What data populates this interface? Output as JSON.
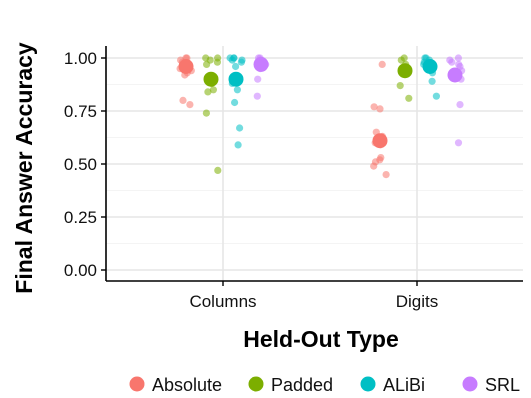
{
  "chart_data": {
    "type": "scatter",
    "title": "",
    "xlabel": "Held-Out Type",
    "ylabel": "Final Answer Accuracy",
    "categories": [
      "Columns",
      "Digits"
    ],
    "ylim": [
      0,
      1
    ],
    "yticks": [
      "0.00",
      "0.25",
      "0.50",
      "0.75",
      "1.00"
    ],
    "grid": true,
    "legend_position": "bottom",
    "series": [
      {
        "name": "Absolute",
        "color": "#F8766D",
        "means": [
          0.96,
          0.61
        ],
        "points": [
          [
            1.0,
            1.0,
            0.99,
            0.98,
            0.97,
            0.96,
            0.95,
            0.94,
            0.93,
            0.92,
            0.8,
            0.78
          ],
          [
            0.97,
            0.77,
            0.76,
            0.65,
            0.63,
            0.6,
            0.53,
            0.52,
            0.51,
            0.49,
            0.45
          ]
        ]
      },
      {
        "name": "Padded",
        "color": "#7CAE00",
        "means": [
          0.9,
          0.94
        ],
        "points": [
          [
            1.0,
            1.0,
            0.99,
            0.98,
            0.97,
            0.91,
            0.88,
            0.85,
            0.84,
            0.74,
            0.47
          ],
          [
            1.0,
            0.99,
            0.97,
            0.95,
            0.87,
            0.81
          ]
        ]
      },
      {
        "name": "ALiBi",
        "color": "#00BFC4",
        "means": [
          0.9,
          0.96
        ],
        "points": [
          [
            1.0,
            1.0,
            1.0,
            0.99,
            0.99,
            0.98,
            0.96,
            0.88,
            0.85,
            0.79,
            0.67,
            0.59
          ],
          [
            1.0,
            1.0,
            0.99,
            0.98,
            0.97,
            0.95,
            0.93,
            0.89,
            0.82
          ]
        ]
      },
      {
        "name": "SRL",
        "color": "#C77CFF",
        "means": [
          0.97,
          0.92
        ],
        "points": [
          [
            1.0,
            1.0,
            0.99,
            0.98,
            0.97,
            0.96,
            0.95,
            0.9,
            0.82
          ],
          [
            1.0,
            0.99,
            0.98,
            0.97,
            0.96,
            0.94,
            0.9,
            0.78,
            0.6
          ]
        ]
      }
    ]
  }
}
